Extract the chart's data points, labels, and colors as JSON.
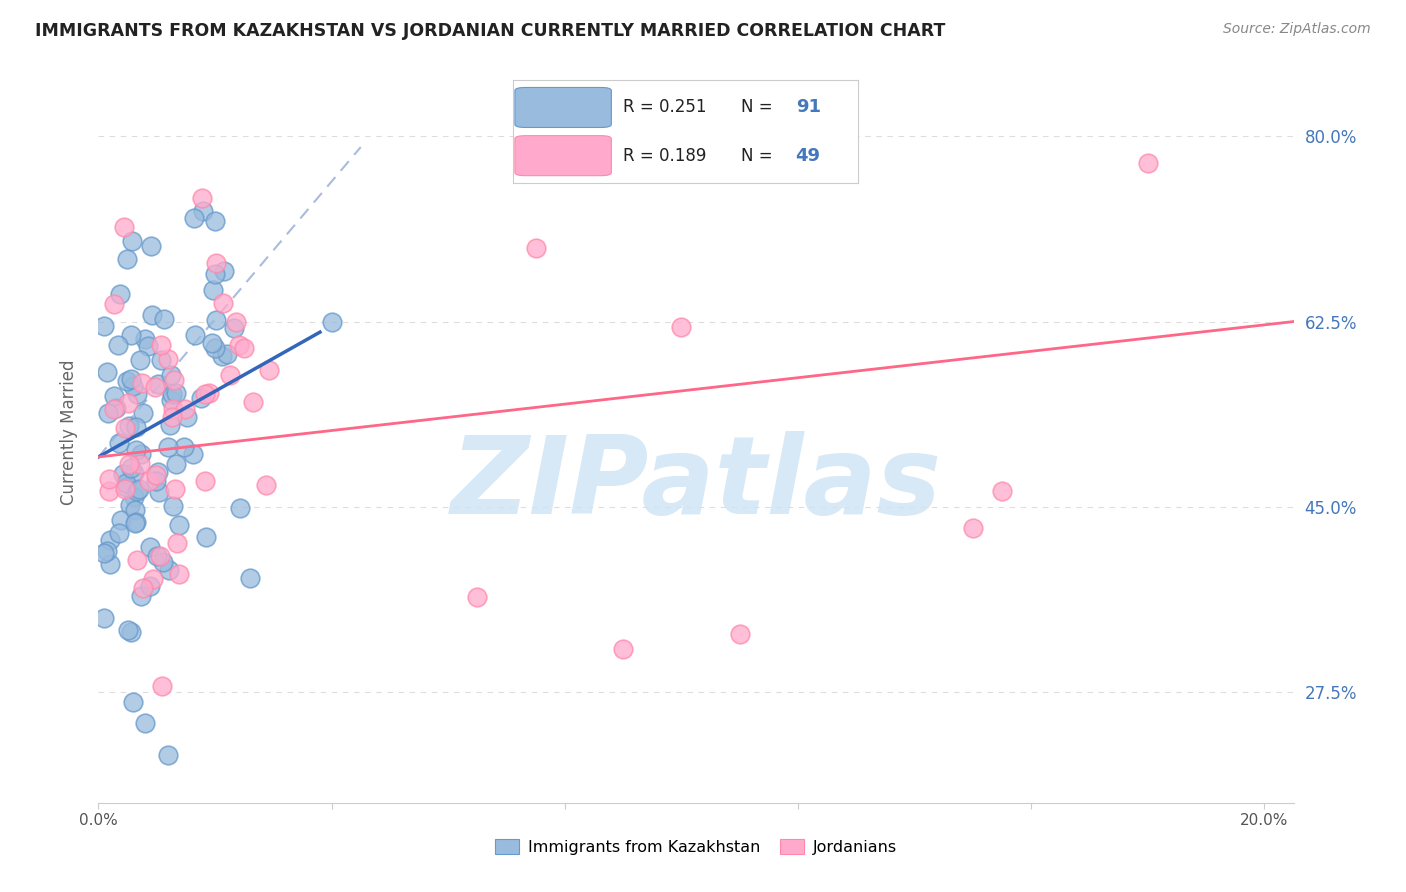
{
  "title": "IMMIGRANTS FROM KAZAKHSTAN VS JORDANIAN CURRENTLY MARRIED CORRELATION CHART",
  "source": "Source: ZipAtlas.com",
  "ylabel": "Currently Married",
  "y_tick_positions": [
    0.275,
    0.45,
    0.625,
    0.8
  ],
  "y_tick_labels": [
    "27.5%",
    "45.0%",
    "62.5%",
    "80.0%"
  ],
  "x_tick_positions": [
    0.0,
    0.04,
    0.08,
    0.12,
    0.16,
    0.2
  ],
  "x_tick_labels": [
    "0.0%",
    "",
    "",
    "",
    "",
    "20.0%"
  ],
  "blue_color": "#99BBDD",
  "pink_color": "#FFAACC",
  "blue_edge_color": "#6699CC",
  "pink_edge_color": "#FF88AA",
  "blue_line_color": "#3366BB",
  "pink_line_color": "#FF6688",
  "dashed_line_color": "#AABBDD",
  "watermark_text": "ZIPatlas",
  "watermark_color": "#D0E4F5",
  "xlim": [
    0.0,
    0.205
  ],
  "ylim": [
    0.17,
    0.87
  ],
  "legend_r1": "R = 0.251",
  "legend_n1": "91",
  "legend_r2": "R = 0.189",
  "legend_n2": "49",
  "legend1_label": "Immigrants from Kazakhstan",
  "legend2_label": "Jordanians",
  "blue_line_x": [
    0.0,
    0.038
  ],
  "blue_line_y": [
    0.497,
    0.615
  ],
  "pink_line_x": [
    0.0,
    0.205
  ],
  "pink_line_y": [
    0.497,
    0.625
  ],
  "dashed_line_x": [
    0.0,
    0.045
  ],
  "dashed_line_y": [
    0.497,
    0.79
  ],
  "grid_color": "#DDDDDD",
  "grid_linestyle": "--"
}
